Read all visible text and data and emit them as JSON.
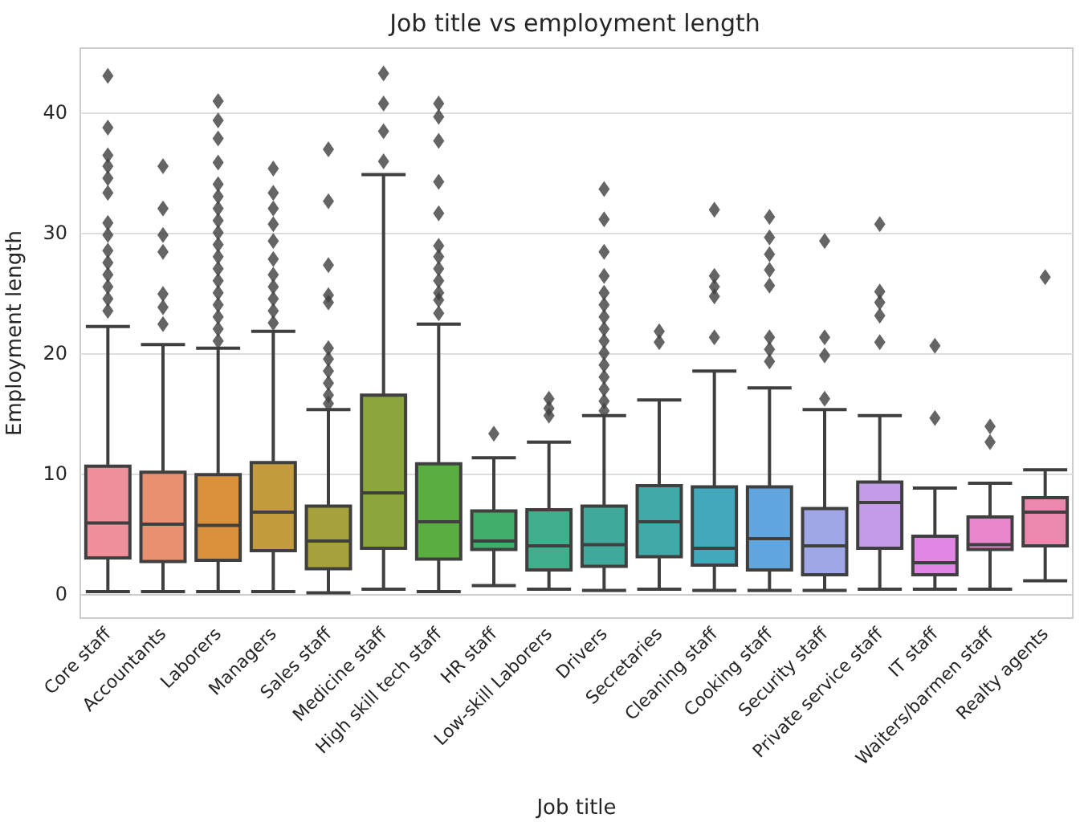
{
  "chart_data": {
    "type": "box",
    "title": "Job title vs employment length",
    "xlabel": "Job title",
    "ylabel": "Employment length",
    "categories": [
      "Core staff",
      "Accountants",
      "Laborers",
      "Managers",
      "Sales staff",
      "Medicine staff",
      "High skill tech staff",
      "HR staff",
      "Low-skill Laborers",
      "Drivers",
      "Secretaries",
      "Cleaning staff",
      "Cooking staff",
      "Security staff",
      "Private service staff",
      "IT staff",
      "Waiters/barmen staff",
      "Realty agents"
    ],
    "colors": [
      "#ee8f9a",
      "#e8906f",
      "#d9913c",
      "#c29b3d",
      "#a8a23e",
      "#8aa63c",
      "#5aad3f",
      "#40ae6a",
      "#3fae8a",
      "#3faa9b",
      "#40aaa9",
      "#42a8bb",
      "#62a6e0",
      "#9fa7e6",
      "#c39be8",
      "#e086e5",
      "#e887cc",
      "#ea89ad"
    ],
    "boxes": [
      {
        "low": 0.2,
        "q1": 3.0,
        "median": 5.9,
        "q3": 10.6,
        "high": 22.2,
        "outliers": [
          43.0,
          38.7,
          36.4,
          35.5,
          34.5,
          33.3,
          30.8,
          29.8,
          28.5,
          27.5,
          26.5,
          25.5,
          24.5,
          23.5
        ]
      },
      {
        "low": 0.2,
        "q1": 2.7,
        "median": 5.8,
        "q3": 10.1,
        "high": 20.7,
        "outliers": [
          35.5,
          32.0,
          29.8,
          28.4,
          24.9,
          23.8,
          22.4
        ]
      },
      {
        "low": 0.2,
        "q1": 2.8,
        "median": 5.7,
        "q3": 9.9,
        "high": 20.4,
        "outliers": [
          40.9,
          39.3,
          37.8,
          35.8,
          34.0,
          33.0,
          32.0,
          31.0,
          30.0,
          29.0,
          28.0,
          27.0,
          26.0,
          25.0,
          24.0,
          23.0,
          22.0,
          21.0
        ]
      },
      {
        "low": 0.2,
        "q1": 3.6,
        "median": 6.8,
        "q3": 10.9,
        "high": 21.8,
        "outliers": [
          35.3,
          33.3,
          32.0,
          30.7,
          29.3,
          27.8,
          26.5,
          25.5,
          24.5,
          23.5,
          22.5
        ]
      },
      {
        "low": 0.1,
        "q1": 2.1,
        "median": 4.4,
        "q3": 7.3,
        "high": 15.3,
        "outliers": [
          36.9,
          32.6,
          27.3,
          24.8,
          24.2,
          20.4,
          19.5,
          18.5,
          17.5,
          16.5,
          15.8
        ]
      },
      {
        "low": 0.4,
        "q1": 3.8,
        "median": 8.4,
        "q3": 16.5,
        "high": 34.8,
        "outliers": [
          43.2,
          40.7,
          38.4,
          35.9
        ]
      },
      {
        "low": 0.2,
        "q1": 2.9,
        "median": 6.0,
        "q3": 10.8,
        "high": 22.4,
        "outliers": [
          40.7,
          39.6,
          37.6,
          34.2,
          31.6,
          28.9,
          28.0,
          27.0,
          26.0,
          25.0,
          24.4,
          23.3
        ]
      },
      {
        "low": 0.7,
        "q1": 3.7,
        "median": 4.4,
        "q3": 6.9,
        "high": 11.3,
        "outliers": [
          13.3
        ]
      },
      {
        "low": 0.4,
        "q1": 2.0,
        "median": 4.0,
        "q3": 7.0,
        "high": 12.6,
        "outliers": [
          16.2,
          15.4,
          14.8
        ]
      },
      {
        "low": 0.3,
        "q1": 2.3,
        "median": 4.1,
        "q3": 7.3,
        "high": 14.8,
        "outliers": [
          33.6,
          31.1,
          28.4,
          26.4,
          25.0,
          24.0,
          23.0,
          22.0,
          21.0,
          20.0,
          19.0,
          18.0,
          17.0,
          16.0,
          15.2
        ]
      },
      {
        "low": 0.4,
        "q1": 3.1,
        "median": 6.0,
        "q3": 9.0,
        "high": 16.1,
        "outliers": [
          21.8,
          20.9
        ]
      },
      {
        "low": 0.3,
        "q1": 2.4,
        "median": 3.8,
        "q3": 8.9,
        "high": 18.5,
        "outliers": [
          31.9,
          26.4,
          25.5,
          24.7,
          21.3
        ]
      },
      {
        "low": 0.3,
        "q1": 2.0,
        "median": 4.6,
        "q3": 8.9,
        "high": 17.1,
        "outliers": [
          31.3,
          29.6,
          28.2,
          26.9,
          25.6,
          21.3,
          20.3,
          19.3
        ]
      },
      {
        "low": 0.3,
        "q1": 1.6,
        "median": 4.0,
        "q3": 7.1,
        "high": 15.3,
        "outliers": [
          29.3,
          21.3,
          19.8,
          16.2
        ]
      },
      {
        "low": 0.4,
        "q1": 3.8,
        "median": 7.6,
        "q3": 9.3,
        "high": 14.8,
        "outliers": [
          30.7,
          25.1,
          24.2,
          23.1,
          20.9
        ]
      },
      {
        "low": 0.4,
        "q1": 1.6,
        "median": 2.6,
        "q3": 4.8,
        "high": 8.8,
        "outliers": [
          20.6,
          14.6
        ]
      },
      {
        "low": 0.4,
        "q1": 3.7,
        "median": 4.1,
        "q3": 6.4,
        "high": 9.2,
        "outliers": [
          13.9,
          12.6
        ]
      },
      {
        "low": 1.1,
        "q1": 4.0,
        "median": 6.8,
        "q3": 8.0,
        "high": 10.3,
        "outliers": [
          26.3
        ]
      }
    ],
    "ylim": [
      -2,
      45.3
    ],
    "yticks": [
      0,
      10,
      20,
      30,
      40
    ],
    "grid": "y",
    "marker": "diamond"
  }
}
